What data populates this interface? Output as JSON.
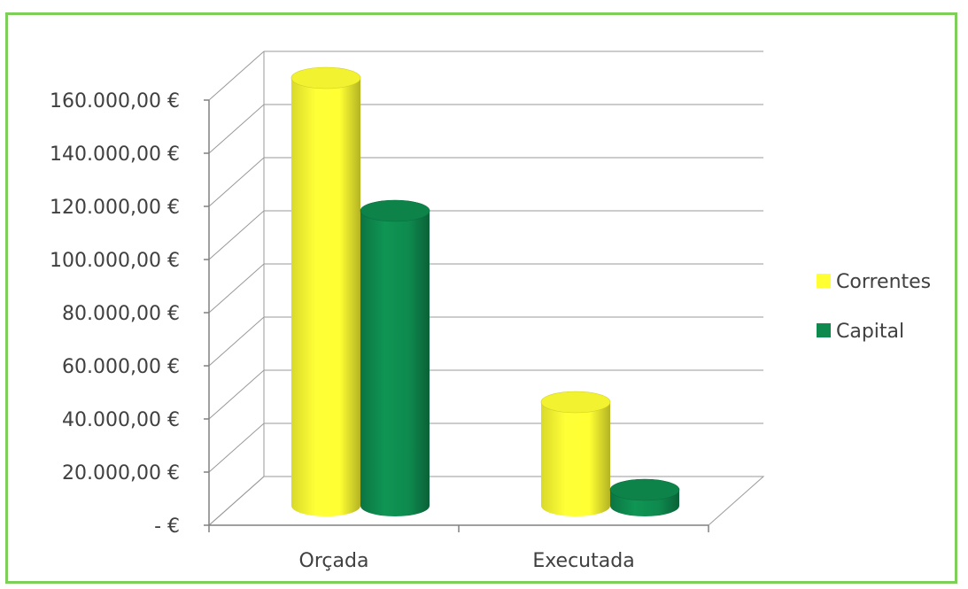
{
  "chart_data": {
    "type": "bar",
    "style": "3d-cylinder",
    "categories": [
      "Orçada",
      "Executada"
    ],
    "series": [
      {
        "name": "Correntes",
        "values": [
          161000,
          39000
        ],
        "color": "#ffff33"
      },
      {
        "name": "Capital",
        "values": [
          111000,
          6000
        ],
        "color": "#0e8a4e"
      }
    ],
    "y_ticks": [
      "160.000,00 €",
      "140.000,00 €",
      "120.000,00 €",
      "100.000,00 €",
      "80.000,00 €",
      "60.000,00 €",
      "40.000,00 €",
      "20.000,00 €",
      "-  €"
    ],
    "ylim": [
      0,
      160000
    ],
    "grid": true,
    "legend_position": "right",
    "colors": {
      "frame": "#7ecf5a",
      "grid": "#9a9a9a",
      "text": "#404040"
    }
  }
}
